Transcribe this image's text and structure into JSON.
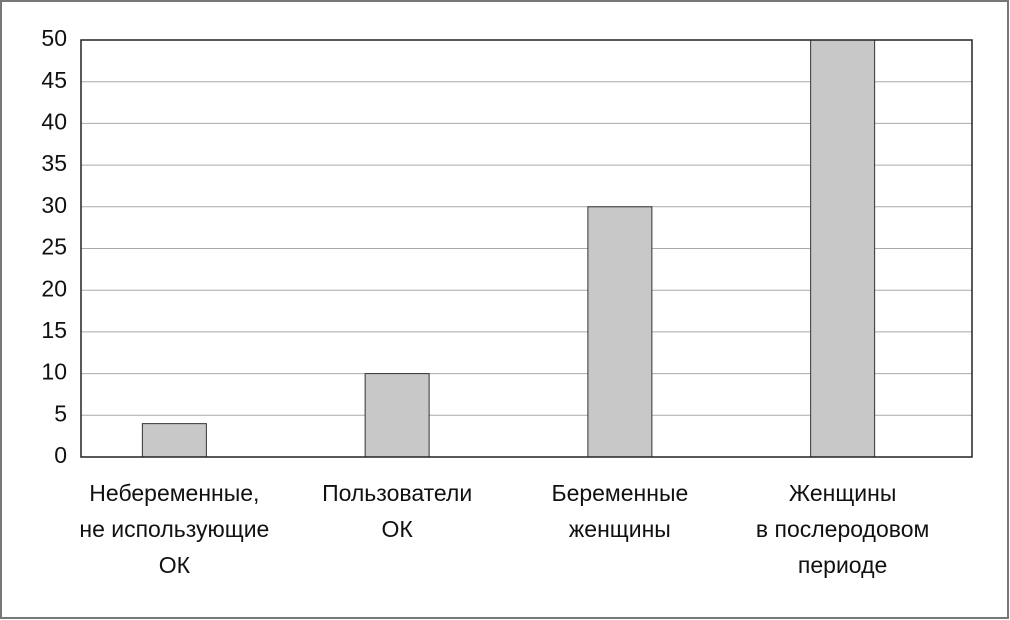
{
  "chart_data": {
    "type": "bar",
    "categories": [
      "Небеременные,\nне использующие\nОК",
      "Пользователи\nОК",
      "Беременные\nженщины",
      "Женщины\nв послеродовом\nпериоде"
    ],
    "values": [
      4,
      10,
      30,
      50
    ],
    "color": "#c8c8c8",
    "ylim": [
      0,
      50
    ],
    "yticks": [
      0,
      5,
      10,
      15,
      20,
      25,
      30,
      35,
      40,
      45,
      50
    ],
    "grid": true
  }
}
